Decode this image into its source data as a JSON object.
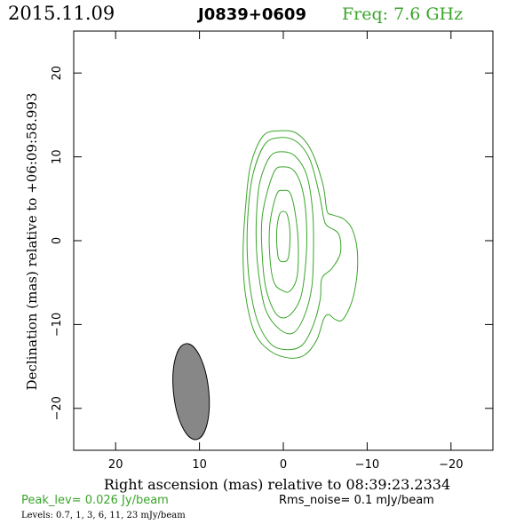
{
  "header": {
    "date": "2015.11.09",
    "source": "J0839+0609",
    "freq": "Freq:  7.6  GHz"
  },
  "footer": {
    "peak": "Peak_lev=   0.026  Jy/beam",
    "rms": "Rms_noise=    0.1  mJy/beam",
    "levels": "Levels: 0.7,    1,    3,    6,   11,   23  mJy/beam"
  },
  "colors": {
    "contour": "#3aa52a",
    "beam_fill": "#878787",
    "header_text": "#000000",
    "freq_text": "#3aa52a"
  },
  "chart_data": {
    "type": "contour",
    "xlabel": "Right ascension (mas) relative to 08:39:23.2334",
    "ylabel": "Declination (mas) relative to +06:09:58.993",
    "xlim": [
      25,
      -25
    ],
    "ylim": [
      -25,
      25
    ],
    "x_ticks": [
      20,
      10,
      0,
      -10,
      -20
    ],
    "x_tick_labels": [
      "20",
      "10",
      "0",
      "−10",
      "−20"
    ],
    "y_ticks": [
      20,
      10,
      0,
      -10,
      -20
    ],
    "y_tick_labels": [
      "20",
      "10",
      "0",
      "−10",
      "−20"
    ],
    "levels_mJy_per_beam": [
      0.7,
      1,
      3,
      6,
      11,
      23
    ],
    "contours": [
      [
        [
          0.8,
          0.7
        ],
        [
          0.5,
          3.0
        ],
        [
          0.0,
          3.5
        ],
        [
          -0.5,
          3.0
        ],
        [
          -0.8,
          0.7
        ],
        [
          -0.6,
          -2.0
        ],
        [
          0.0,
          -2.5
        ],
        [
          0.6,
          -2.0
        ]
      ],
      [
        [
          0.8,
          5.5
        ],
        [
          0.0,
          6.0
        ],
        [
          -0.9,
          5.5
        ],
        [
          -1.6,
          2.0
        ],
        [
          -1.8,
          -1.5
        ],
        [
          -1.6,
          -4.5
        ],
        [
          -0.8,
          -6.0
        ],
        [
          0.0,
          -6.0
        ],
        [
          1.1,
          -5.0
        ],
        [
          1.6,
          -2.0
        ],
        [
          1.6,
          2.0
        ]
      ],
      [
        [
          1.2,
          8.0
        ],
        [
          0.0,
          8.8
        ],
        [
          -1.4,
          8.2
        ],
        [
          -2.4,
          5.5
        ],
        [
          -2.8,
          1.0
        ],
        [
          -2.6,
          -3.5
        ],
        [
          -2.0,
          -7.0
        ],
        [
          -0.6,
          -9.0
        ],
        [
          0.8,
          -8.8
        ],
        [
          2.0,
          -6.0
        ],
        [
          2.5,
          -2.0
        ],
        [
          2.5,
          3.0
        ]
      ],
      [
        [
          1.6,
          10.0
        ],
        [
          0.2,
          10.6
        ],
        [
          -1.4,
          10.1
        ],
        [
          -2.8,
          7.8
        ],
        [
          -3.5,
          3.5
        ],
        [
          -3.6,
          -1.0
        ],
        [
          -3.4,
          -5.5
        ],
        [
          -2.5,
          -9.0
        ],
        [
          -1.2,
          -11.0
        ],
        [
          0.4,
          -10.6
        ],
        [
          2.0,
          -8.5
        ],
        [
          2.8,
          -5.0
        ],
        [
          3.2,
          -1.0
        ],
        [
          3.2,
          3.0
        ],
        [
          2.8,
          7.0
        ]
      ],
      [
        [
          2.2,
          11.5
        ],
        [
          0.4,
          12.3
        ],
        [
          -1.6,
          11.8
        ],
        [
          -3.2,
          9.6
        ],
        [
          -4.3,
          5.5
        ],
        [
          -4.8,
          2.8
        ],
        [
          -5.2,
          1.8
        ],
        [
          -6.6,
          0.8
        ],
        [
          -6.8,
          -1.5
        ],
        [
          -5.8,
          -3.3
        ],
        [
          -4.6,
          -4.5
        ],
        [
          -4.4,
          -7.0
        ],
        [
          -3.6,
          -10.0
        ],
        [
          -2.3,
          -12.4
        ],
        [
          -0.6,
          -13.0
        ],
        [
          1.4,
          -12.4
        ],
        [
          3.0,
          -9.8
        ],
        [
          3.9,
          -6.0
        ],
        [
          4.3,
          -1.5
        ],
        [
          4.2,
          3.5
        ],
        [
          3.6,
          8.0
        ]
      ],
      [
        [
          2.4,
          12.5
        ],
        [
          0.4,
          13.1
        ],
        [
          -1.6,
          12.8
        ],
        [
          -3.3,
          10.8
        ],
        [
          -4.7,
          6.8
        ],
        [
          -5.2,
          3.6
        ],
        [
          -5.8,
          3.1
        ],
        [
          -7.2,
          2.6
        ],
        [
          -8.2,
          1.4
        ],
        [
          -8.8,
          -1.0
        ],
        [
          -8.8,
          -4.0
        ],
        [
          -8.2,
          -7.2
        ],
        [
          -7.1,
          -9.4
        ],
        [
          -6.2,
          -9.4
        ],
        [
          -5.4,
          -8.8
        ],
        [
          -4.8,
          -9.4
        ],
        [
          -4.0,
          -11.8
        ],
        [
          -2.6,
          -13.6
        ],
        [
          -0.8,
          -14.0
        ],
        [
          1.5,
          -13.2
        ],
        [
          3.4,
          -11.0
        ],
        [
          4.5,
          -6.5
        ],
        [
          4.8,
          -1.5
        ],
        [
          4.5,
          4.0
        ],
        [
          3.9,
          9.0
        ]
      ]
    ],
    "beam": {
      "center_x": 11,
      "center_y": -18,
      "major_axis": 11.5,
      "minor_axis": 4.2,
      "position_angle_deg": -6
    }
  }
}
